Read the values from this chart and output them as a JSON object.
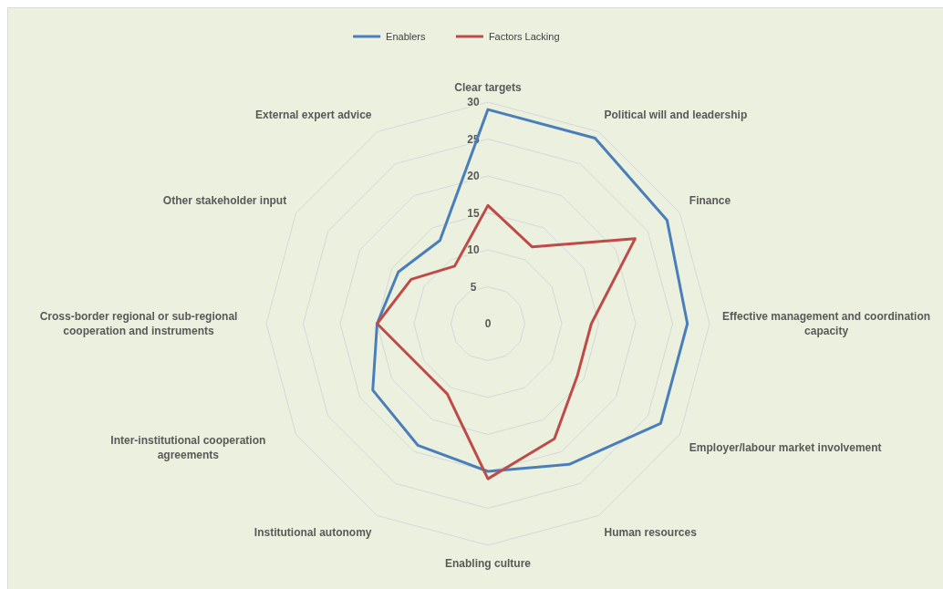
{
  "chart_data": {
    "type": "radar",
    "categories": [
      "Clear targets",
      "Political will and leadership",
      "Finance",
      "Effective management and coordination capacity",
      "Employer/labour market involvement",
      "Human resources",
      "Enabling culture",
      "Institutional autonomy",
      "Inter-institutional cooperation agreements",
      "Cross-border regional or sub-regional cooperation and instruments",
      "Other stakeholder input",
      "External expert advice"
    ],
    "series": [
      {
        "name": "Enablers",
        "color": "#4a7ebb",
        "values": [
          29,
          29,
          28,
          27,
          27,
          22,
          20,
          19,
          18,
          15,
          14,
          13
        ]
      },
      {
        "name": "Factors Lacking",
        "color": "#be4b48",
        "values": [
          16,
          12,
          23,
          14,
          14,
          18,
          21,
          11,
          11,
          15,
          12,
          9
        ]
      }
    ],
    "ylim": [
      0,
      30
    ],
    "yticks": [
      0,
      5,
      10,
      15,
      20,
      25,
      30
    ],
    "grid": true,
    "legend": "top",
    "marker": "none"
  }
}
